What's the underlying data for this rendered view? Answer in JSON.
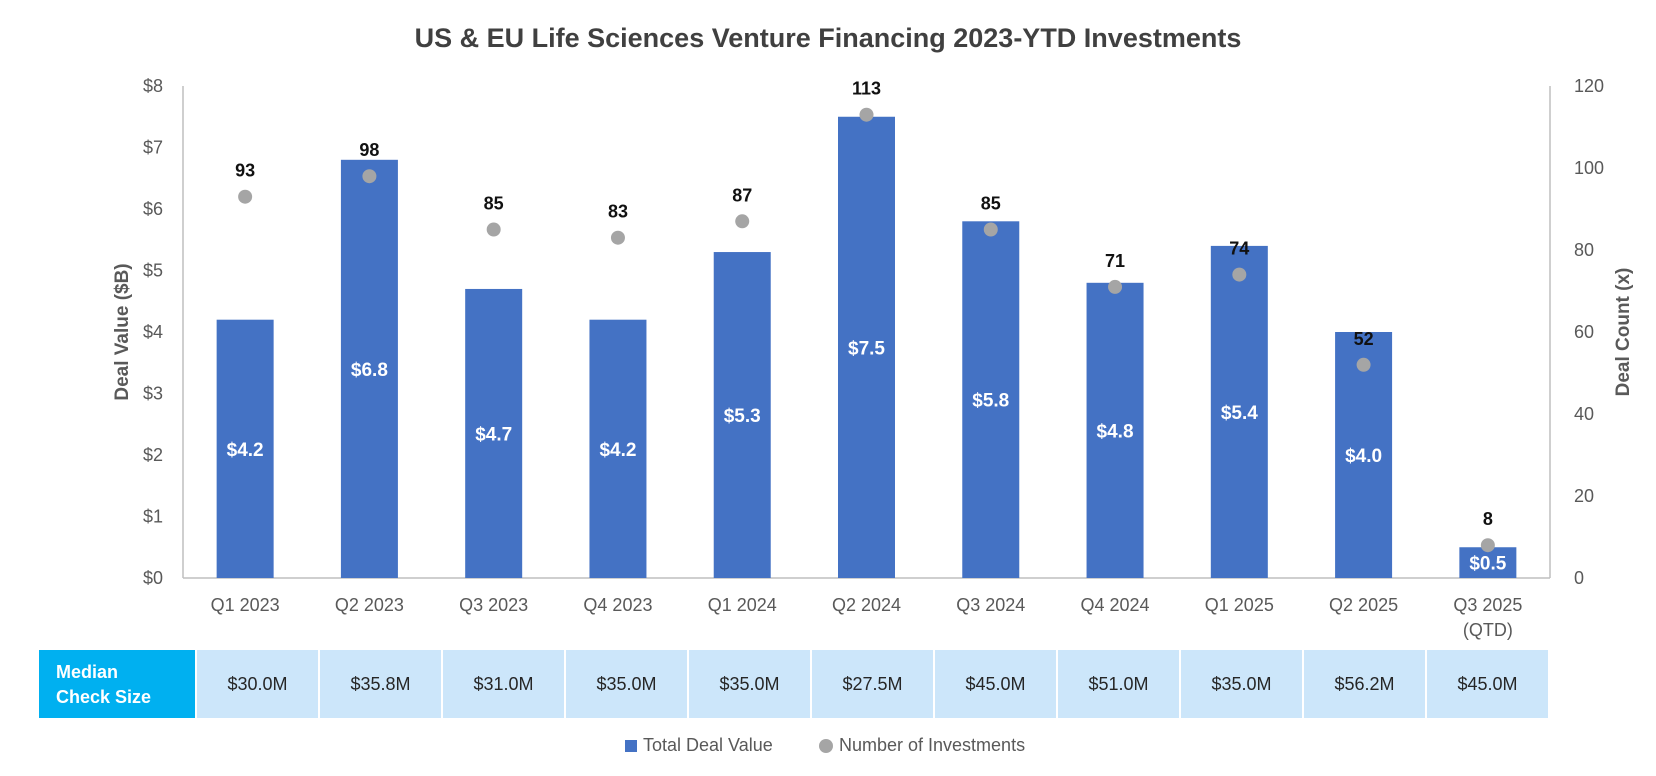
{
  "chart_data": {
    "type": "bar",
    "title": "US & EU Life Sciences Venture Financing 2023-YTD Investments",
    "categories": [
      "Q1 2023",
      "Q2 2023",
      "Q3 2023",
      "Q4 2023",
      "Q1 2024",
      "Q2 2024",
      "Q3 2024",
      "Q4 2024",
      "Q1 2025",
      "Q2 2025",
      "Q3 2025 (QTD)"
    ],
    "category_lines": [
      [
        "Q1 2023"
      ],
      [
        "Q2 2023"
      ],
      [
        "Q3 2023"
      ],
      [
        "Q4 2023"
      ],
      [
        "Q1 2024"
      ],
      [
        "Q2 2024"
      ],
      [
        "Q3 2024"
      ],
      [
        "Q4 2024"
      ],
      [
        "Q1 2025"
      ],
      [
        "Q2 2025"
      ],
      [
        "Q3 2025",
        "(QTD)"
      ]
    ],
    "series": [
      {
        "name": "Total Deal Value",
        "type": "bar",
        "axis": "left",
        "values": [
          4.2,
          6.8,
          4.7,
          4.2,
          5.3,
          7.5,
          5.8,
          4.8,
          5.4,
          4.0,
          0.5
        ],
        "labels": [
          "$4.2",
          "$6.8",
          "$4.7",
          "$4.2",
          "$5.3",
          "$7.5",
          "$5.8",
          "$4.8",
          "$5.4",
          "$4.0",
          "$0.5"
        ],
        "color": "#4472C4"
      },
      {
        "name": "Number of Investments",
        "type": "scatter",
        "axis": "right",
        "values": [
          93,
          98,
          85,
          83,
          87,
          113,
          85,
          71,
          74,
          52,
          8
        ],
        "labels": [
          "93",
          "98",
          "85",
          "83",
          "87",
          "113",
          "85",
          "71",
          "74",
          "52",
          "8"
        ],
        "color": "#A5A5A5"
      }
    ],
    "ylabel": "Deal Value ($B)",
    "ylim": [
      0,
      8
    ],
    "yticks": [
      "$0",
      "$1",
      "$2",
      "$3",
      "$4",
      "$5",
      "$6",
      "$7",
      "$8"
    ],
    "y2label": "Deal Count (x)",
    "y2lim": [
      0,
      120
    ],
    "y2ticks": [
      "0",
      "20",
      "40",
      "60",
      "80",
      "100",
      "120"
    ],
    "grid": false,
    "legend_position": "bottom",
    "median_check_size": {
      "label_lines": [
        "Median",
        "Check Size"
      ],
      "values": [
        "$30.0M",
        "$35.8M",
        "$31.0M",
        "$35.0M",
        "$35.0M",
        "$27.5M",
        "$45.0M",
        "$51.0M",
        "$35.0M",
        "$56.2M",
        "$45.0M"
      ]
    },
    "colors": {
      "bar": "#4472C4",
      "dot": "#A5A5A5",
      "header_fill": "#00B0F0",
      "cell_fill": "#CCE6FA"
    }
  }
}
